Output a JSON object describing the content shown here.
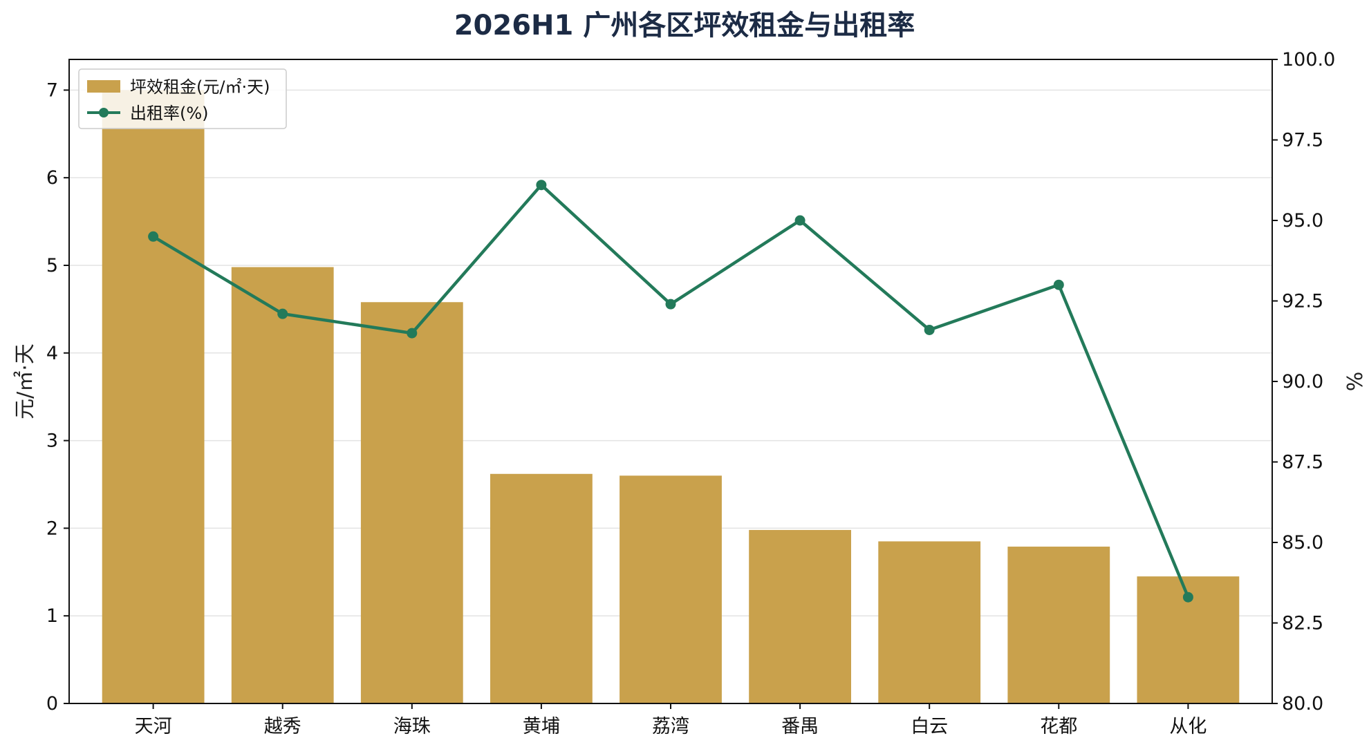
{
  "chart_data": {
    "type": "bar",
    "title": "2026H1 广州各区坪效租金与出租率",
    "categories": [
      "天河",
      "越秀",
      "海珠",
      "黄埔",
      "荔湾",
      "番禺",
      "白云",
      "花都",
      "从化"
    ],
    "series": [
      {
        "name": "坪效租金(元/㎡·天)",
        "type": "bar",
        "axis": "left",
        "color": "#c9a14c",
        "values": [
          7.0,
          4.98,
          4.58,
          2.62,
          2.6,
          1.98,
          1.85,
          1.79,
          1.45
        ]
      },
      {
        "name": "出租率(%)",
        "type": "line",
        "axis": "right",
        "color": "#237a5a",
        "values": [
          94.5,
          92.1,
          91.5,
          96.1,
          92.4,
          95.0,
          91.6,
          93.0,
          83.3
        ]
      }
    ],
    "y_left": {
      "label": "元/㎡·天",
      "lim": [
        0,
        7.35
      ],
      "ticks": [
        "0",
        "1",
        "2",
        "3",
        "4",
        "5",
        "6",
        "7"
      ]
    },
    "y_right": {
      "label": "%",
      "lim": [
        80,
        100
      ],
      "ticks": [
        "80.0",
        "82.5",
        "85.0",
        "87.5",
        "90.0",
        "92.5",
        "95.0",
        "97.5",
        "100.0"
      ]
    },
    "grid": "horizontal",
    "legend": "top-left"
  }
}
